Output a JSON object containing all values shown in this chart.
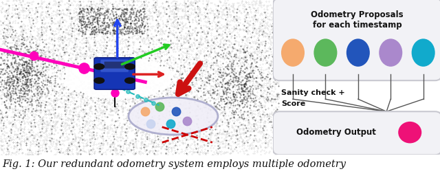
{
  "fig_width": 6.4,
  "fig_height": 2.59,
  "dpi": 100,
  "bg_color": "#ffffff",
  "caption": "Fig. 1: Our redundant odometry system employs multiple odometry",
  "caption_fontsize": 10.5,
  "box1_title_line1": "Odometry Proposals",
  "box1_title_line2": "for each timestamp",
  "box1_colors": [
    "#f5aa6e",
    "#5cb85c",
    "#2255bb",
    "#aa88cc",
    "#11aacc"
  ],
  "box2_label": "Odometry Output",
  "box2_color": "#ee1177",
  "sanity_label_line1": "Sanity check +",
  "sanity_label_line2": "Score",
  "lidar_bg": "#e8e8e8",
  "point_color": "#111111",
  "car_color": "#1a3ab0",
  "arrow_blue": "#2244ee",
  "arrow_green": "#22cc22",
  "arrow_red": "#dd2222",
  "arrow_magenta": "#ff00bb",
  "big_arrow_red": "#cc1111",
  "palette_face": "#f0eef8",
  "palette_edge": "#aaaacc",
  "dot_colors": [
    "#f5aa6e",
    "#5cb85c",
    "#2255bb",
    "#aa88cc",
    "#11aacc",
    "#c8d4f0"
  ],
  "cross_color": "#cc0000"
}
